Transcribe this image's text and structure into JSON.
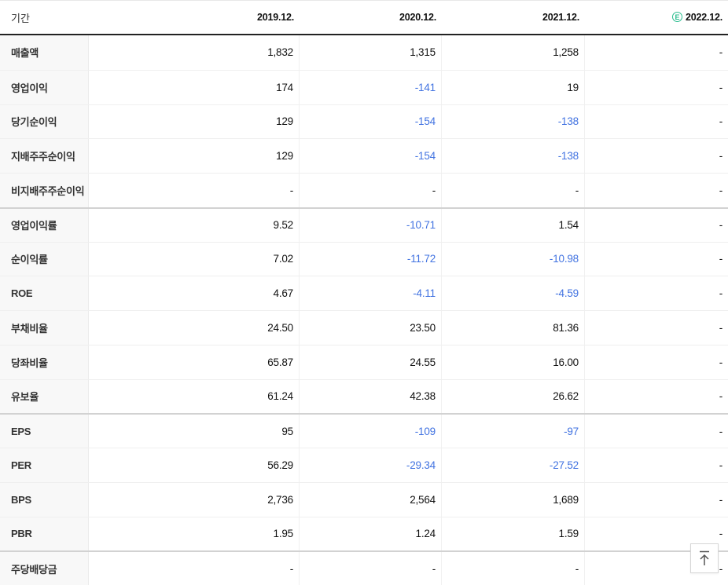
{
  "colors": {
    "negative_value": "#4273e1",
    "estimate_green": "#2bbd8f",
    "header_underline": "#222222",
    "group_separator": "#d2d2d2"
  },
  "table": {
    "period_label": "기간",
    "estimate_badge": "E",
    "columns": [
      {
        "label": "2019.12.",
        "estimate": false
      },
      {
        "label": "2020.12.",
        "estimate": false
      },
      {
        "label": "2021.12.",
        "estimate": false
      },
      {
        "label": "2022.12.",
        "estimate": true
      }
    ],
    "rows": [
      {
        "label": "매출액",
        "values": [
          "1,832",
          "1,315",
          "1,258",
          "-"
        ],
        "group_start": false
      },
      {
        "label": "영업이익",
        "values": [
          "174",
          "-141",
          "19",
          "-"
        ],
        "group_start": false
      },
      {
        "label": "당기순이익",
        "values": [
          "129",
          "-154",
          "-138",
          "-"
        ],
        "group_start": false
      },
      {
        "label": "지배주주순이익",
        "values": [
          "129",
          "-154",
          "-138",
          "-"
        ],
        "group_start": false
      },
      {
        "label": "비지배주주순이익",
        "values": [
          "-",
          "-",
          "-",
          "-"
        ],
        "group_start": false
      },
      {
        "label": "영업이익률",
        "values": [
          "9.52",
          "-10.71",
          "1.54",
          "-"
        ],
        "group_start": true
      },
      {
        "label": "순이익률",
        "values": [
          "7.02",
          "-11.72",
          "-10.98",
          "-"
        ],
        "group_start": false
      },
      {
        "label": "ROE",
        "values": [
          "4.67",
          "-4.11",
          "-4.59",
          "-"
        ],
        "group_start": false
      },
      {
        "label": "부채비율",
        "values": [
          "24.50",
          "23.50",
          "81.36",
          "-"
        ],
        "group_start": false
      },
      {
        "label": "당좌비율",
        "values": [
          "65.87",
          "24.55",
          "16.00",
          "-"
        ],
        "group_start": false
      },
      {
        "label": "유보율",
        "values": [
          "61.24",
          "42.38",
          "26.62",
          "-"
        ],
        "group_start": false
      },
      {
        "label": "EPS",
        "values": [
          "95",
          "-109",
          "-97",
          "-"
        ],
        "group_start": true
      },
      {
        "label": "PER",
        "values": [
          "56.29",
          "-29.34",
          "-27.52",
          "-"
        ],
        "group_start": false
      },
      {
        "label": "BPS",
        "values": [
          "2,736",
          "2,564",
          "1,689",
          "-"
        ],
        "group_start": false
      },
      {
        "label": "PBR",
        "values": [
          "1.95",
          "1.24",
          "1.59",
          "-"
        ],
        "group_start": false
      },
      {
        "label": "주당배당금",
        "values": [
          "-",
          "-",
          "-",
          "-"
        ],
        "group_start": true
      }
    ]
  },
  "scroll_top_button": {
    "icon": "scroll-to-top"
  }
}
